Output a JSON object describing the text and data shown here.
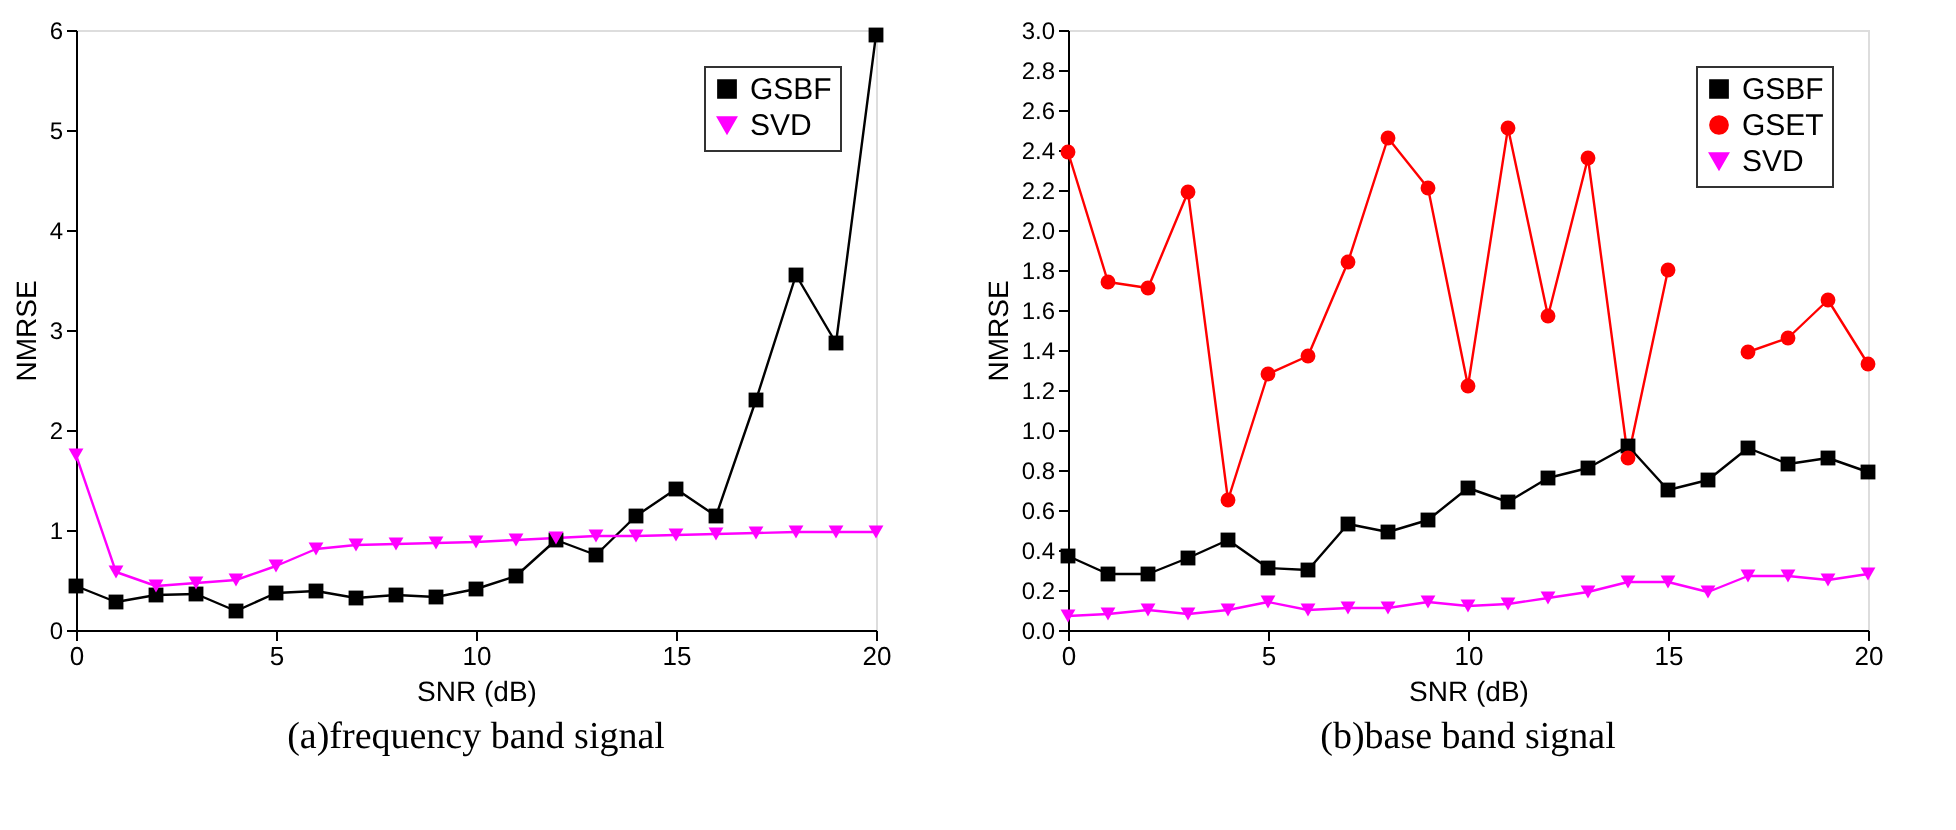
{
  "chart_data": [
    {
      "type": "line",
      "title": "(a)frequency band signal",
      "xlabel": "SNR (dB)",
      "ylabel": "NMRSE",
      "x": [
        0,
        1,
        2,
        3,
        4,
        5,
        6,
        7,
        8,
        9,
        10,
        11,
        12,
        13,
        14,
        15,
        16,
        17,
        18,
        19,
        20
      ],
      "series": [
        {
          "name": "GSBF",
          "color": "#000000",
          "marker": "square",
          "values": [
            0.44,
            0.28,
            0.35,
            0.36,
            0.19,
            0.37,
            0.39,
            0.32,
            0.35,
            0.33,
            0.41,
            0.54,
            0.9,
            0.75,
            1.14,
            1.41,
            1.14,
            2.3,
            3.55,
            2.87,
            5.95
          ]
        },
        {
          "name": "SVD",
          "color": "#ff00ff",
          "marker": "triangle",
          "values": [
            1.75,
            0.58,
            0.44,
            0.47,
            0.5,
            0.64,
            0.81,
            0.85,
            0.86,
            0.87,
            0.88,
            0.9,
            0.92,
            0.94,
            0.94,
            0.95,
            0.96,
            0.97,
            0.98,
            0.98,
            0.98
          ]
        }
      ],
      "xlim": [
        0,
        20
      ],
      "xticks": [
        0,
        5,
        10,
        15,
        20
      ],
      "ylim": [
        0,
        6
      ],
      "yticks": [
        0,
        1,
        2,
        3,
        4,
        5,
        6
      ],
      "grid": false,
      "legend": "top right",
      "line_style": "solid"
    },
    {
      "type": "line",
      "title": "(b)base band signal",
      "xlabel": "SNR (dB)",
      "ylabel": "NMRSE",
      "x": [
        0,
        1,
        2,
        3,
        4,
        5,
        6,
        7,
        8,
        9,
        10,
        11,
        12,
        13,
        14,
        15,
        16,
        17,
        18,
        19,
        20
      ],
      "series": [
        {
          "name": "GSBF",
          "color": "#000000",
          "marker": "square",
          "values": [
            0.37,
            0.28,
            0.28,
            0.36,
            0.45,
            0.31,
            0.3,
            0.53,
            0.49,
            0.55,
            0.71,
            0.64,
            0.76,
            0.81,
            0.92,
            0.7,
            0.75,
            0.91,
            0.83,
            0.86,
            0.79
          ]
        },
        {
          "name": "GSET",
          "color": "#ff0000",
          "marker": "circle",
          "values": [
            2.39,
            1.74,
            1.71,
            2.19,
            0.65,
            1.28,
            1.37,
            1.84,
            2.46,
            2.21,
            1.22,
            2.51,
            1.57,
            2.36,
            0.86,
            1.8,
            null,
            1.39,
            1.46,
            1.65,
            1.33
          ]
        },
        {
          "name": "SVD",
          "color": "#ff00ff",
          "marker": "triangle",
          "values": [
            0.07,
            0.08,
            0.1,
            0.08,
            0.1,
            0.14,
            0.1,
            0.11,
            0.11,
            0.14,
            0.12,
            0.13,
            0.16,
            0.19,
            0.24,
            0.24,
            0.19,
            0.27,
            0.27,
            0.25,
            0.28
          ]
        }
      ],
      "xlim": [
        0,
        20
      ],
      "xticks": [
        0,
        5,
        10,
        15,
        20
      ],
      "ylim": [
        0,
        3
      ],
      "yticks": [
        {
          "value": 0,
          "label": "0.0"
        },
        0.2,
        0.4,
        0.6,
        0.8,
        {
          "value": 1,
          "label": "1.0"
        },
        1.2,
        1.4,
        1.6,
        1.8,
        {
          "value": 2,
          "label": "2.0"
        },
        2.2,
        2.4,
        2.6,
        2.8,
        {
          "value": 3,
          "label": "3.0"
        }
      ],
      "grid": false,
      "legend": "top right",
      "line_style": "solid"
    }
  ]
}
